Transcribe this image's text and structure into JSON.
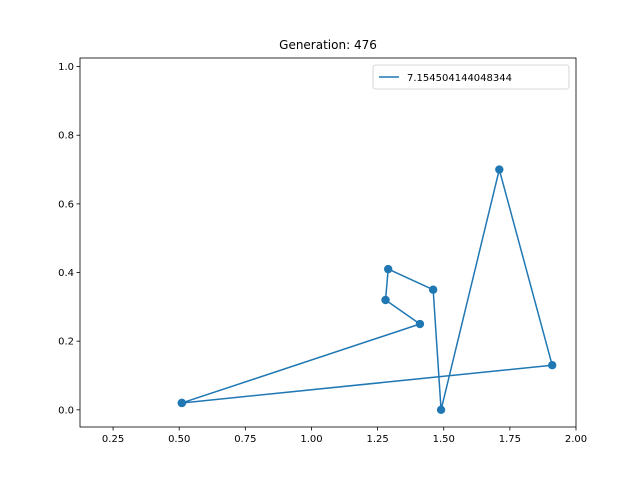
{
  "chart_data": {
    "type": "line",
    "title": "Generation: 476",
    "xlabel": "",
    "ylabel": "",
    "xlim": [
      0.125,
      2.0
    ],
    "ylim": [
      -0.05,
      1.025
    ],
    "xticks": [
      0.25,
      0.5,
      0.75,
      1.0,
      1.25,
      1.5,
      1.75,
      2.0
    ],
    "xtick_labels": [
      "0.25",
      "0.50",
      "0.75",
      "1.00",
      "1.25",
      "1.50",
      "1.75",
      "2.00"
    ],
    "yticks": [
      0.0,
      0.2,
      0.4,
      0.6,
      0.8,
      1.0
    ],
    "ytick_labels": [
      "0.0",
      "0.2",
      "0.4",
      "0.6",
      "0.8",
      "1.0"
    ],
    "grid": false,
    "legend_position": "top-right",
    "series": [
      {
        "name": "7.154504144048344",
        "color": "#1f77b4",
        "marker": "circle",
        "x": [
          0.51,
          1.41,
          1.28,
          1.29,
          1.46,
          1.49,
          1.71,
          1.91,
          0.51
        ],
        "y": [
          0.02,
          0.25,
          0.32,
          0.41,
          0.35,
          0.0,
          0.7,
          0.13,
          0.02
        ],
        "x_order_note": ""
      }
    ]
  }
}
